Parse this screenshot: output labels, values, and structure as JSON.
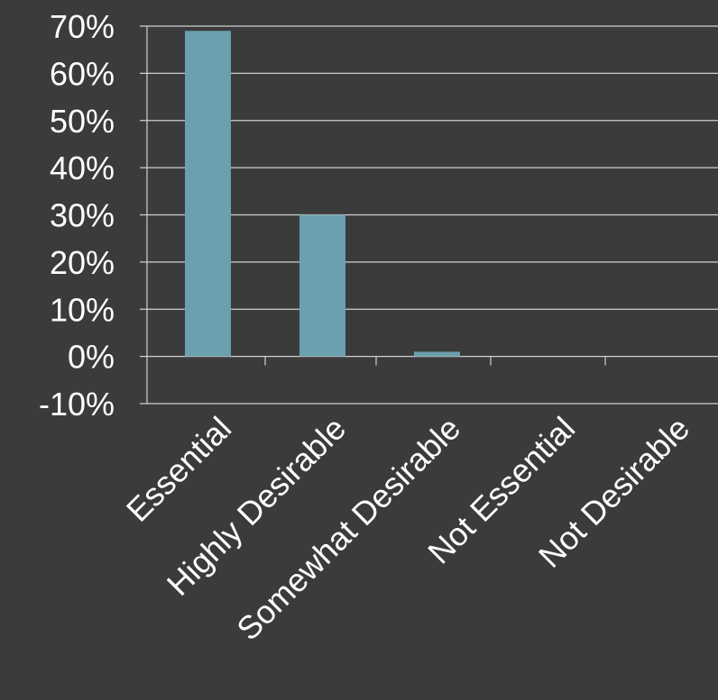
{
  "chart_data": {
    "type": "bar",
    "categories": [
      "Essential",
      "Highly Desirable",
      "Somewhat Desirable",
      "Not Essential",
      "Not Desirable"
    ],
    "values": [
      0.69,
      0.3,
      0.01,
      0,
      0
    ],
    "ylim": [
      -0.1,
      0.7
    ],
    "y_ticks": [
      "-10%",
      "0%",
      "10%",
      "20%",
      "30%",
      "40%",
      "50%",
      "60%",
      "70%"
    ],
    "y_tick_values": [
      -0.1,
      0,
      0.1,
      0.2,
      0.3,
      0.4,
      0.5,
      0.6,
      0.7
    ],
    "grid": true,
    "colors": {
      "background": "#3b3b3b",
      "bar": "#6aa0b0",
      "grid": "#cfcfcf",
      "text": "#ffffff"
    }
  }
}
